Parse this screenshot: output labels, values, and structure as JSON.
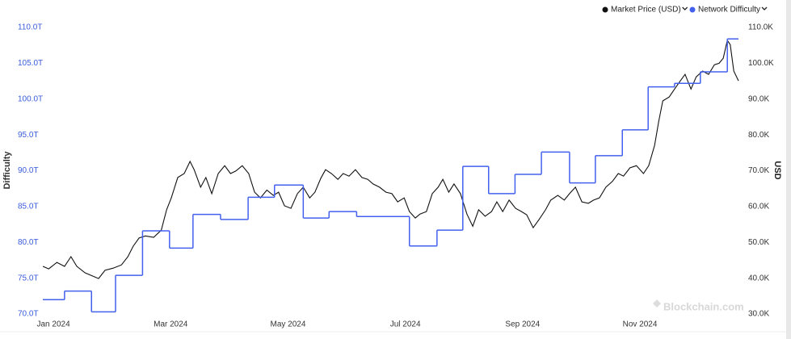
{
  "chart_data": {
    "type": "line",
    "y_label": "Difficulty",
    "y2_label": "USD",
    "watermark": "Blockchain.com",
    "xlim": [
      -0.18,
      11.68
    ],
    "xticks": [
      {
        "value": 0,
        "label": "Jan 2024"
      },
      {
        "value": 2,
        "label": "Mar 2024"
      },
      {
        "value": 4,
        "label": "May 2024"
      },
      {
        "value": 6,
        "label": "Jul 2024"
      },
      {
        "value": 8,
        "label": "Sep 2024"
      },
      {
        "value": 10,
        "label": "Nov 2024"
      }
    ],
    "ylim": [
      70,
      110
    ],
    "yticks": [
      {
        "value": 70,
        "label": "70.0T"
      },
      {
        "value": 75,
        "label": "75.0T"
      },
      {
        "value": 80,
        "label": "80.0T"
      },
      {
        "value": 85,
        "label": "85.0T"
      },
      {
        "value": 90,
        "label": "90.0T"
      },
      {
        "value": 95,
        "label": "95.0T"
      },
      {
        "value": 100,
        "label": "100.0T"
      },
      {
        "value": 105,
        "label": "105.0T"
      },
      {
        "value": 110,
        "label": "110.0T"
      }
    ],
    "y2lim": [
      30,
      110
    ],
    "y2ticks": [
      {
        "value": 30,
        "label": "30.0K"
      },
      {
        "value": 40,
        "label": "40.0K"
      },
      {
        "value": 50,
        "label": "50.0K"
      },
      {
        "value": 60,
        "label": "60.0K"
      },
      {
        "value": 70,
        "label": "70.0K"
      },
      {
        "value": 80,
        "label": "80.0K"
      },
      {
        "value": 90,
        "label": "90.0K"
      },
      {
        "value": 100,
        "label": "100.0K"
      },
      {
        "value": 110,
        "label": "110.0K"
      }
    ],
    "left_axis_color": "#3b5bdb",
    "series": [
      {
        "name": "Market Price (USD)",
        "color": "#111111",
        "axis": "y2",
        "x": [
          -0.18,
          -0.08,
          0.06,
          0.19,
          0.3,
          0.4,
          0.54,
          0.67,
          0.77,
          0.88,
          1.02,
          1.16,
          1.27,
          1.36,
          1.46,
          1.57,
          1.71,
          1.84,
          1.93,
          2.01,
          2.12,
          2.23,
          2.33,
          2.4,
          2.51,
          2.6,
          2.7,
          2.81,
          2.92,
          3.02,
          3.11,
          3.22,
          3.33,
          3.43,
          3.53,
          3.64,
          3.75,
          3.84,
          3.94,
          4.05,
          4.16,
          4.26,
          4.37,
          4.46,
          4.56,
          4.64,
          4.74,
          4.85,
          4.94,
          5.04,
          5.15,
          5.26,
          5.36,
          5.45,
          5.56,
          5.67,
          5.77,
          5.87,
          5.98,
          6.07,
          6.17,
          6.25,
          6.36,
          6.46,
          6.56,
          6.64,
          6.74,
          6.83,
          6.94,
          7.05,
          7.15,
          7.25,
          7.36,
          7.47,
          7.56,
          7.66,
          7.77,
          7.88,
          7.98,
          8.07,
          8.18,
          8.28,
          8.39,
          8.48,
          8.6,
          8.71,
          8.8,
          8.9,
          9.01,
          9.12,
          9.21,
          9.31,
          9.42,
          9.53,
          9.63,
          9.72,
          9.83,
          9.94,
          10.06,
          10.15,
          10.25,
          10.32,
          10.39,
          10.5,
          10.59,
          10.69,
          10.77,
          10.87,
          10.96,
          11.07,
          11.17,
          11.27,
          11.35,
          11.42,
          11.49,
          11.54,
          11.6,
          11.68
        ],
        "values": [
          43.3,
          42.6,
          44.4,
          43.3,
          46.0,
          43.3,
          41.5,
          40.6,
          39.9,
          42.2,
          42.8,
          43.7,
          46.0,
          48.9,
          51.2,
          51.8,
          51.4,
          53.4,
          59.1,
          62.4,
          68.1,
          69.2,
          72.6,
          70.3,
          65.4,
          68.1,
          63.6,
          69.2,
          71.4,
          69.2,
          69.9,
          71.4,
          69.2,
          64.0,
          62.4,
          64.6,
          63.1,
          64.0,
          60.2,
          59.5,
          63.6,
          65.4,
          62.4,
          64.0,
          67.9,
          70.3,
          69.2,
          67.6,
          69.2,
          68.5,
          70.3,
          68.1,
          67.6,
          66.3,
          65.4,
          64.0,
          63.6,
          61.3,
          62.4,
          58.6,
          56.8,
          57.9,
          58.6,
          63.6,
          65.4,
          67.6,
          64.0,
          66.3,
          63.6,
          57.9,
          54.5,
          59.1,
          57.3,
          58.6,
          61.3,
          58.6,
          61.8,
          59.5,
          58.6,
          57.7,
          54.1,
          56.4,
          59.1,
          61.8,
          63.1,
          61.8,
          63.6,
          65.4,
          61.3,
          60.9,
          61.8,
          62.4,
          65.4,
          67.0,
          69.2,
          68.5,
          70.8,
          71.4,
          69.2,
          71.4,
          77.1,
          83.8,
          89.5,
          90.6,
          92.8,
          95.1,
          96.9,
          92.8,
          96.2,
          97.8,
          96.9,
          99.6,
          100.0,
          101.4,
          106.4,
          105.2,
          97.8,
          95.1
        ]
      },
      {
        "name": "Network Difficulty",
        "color": "#4361ee",
        "axis": "y",
        "step": true,
        "x": [
          -0.18,
          0.19,
          0.65,
          1.06,
          1.52,
          1.98,
          2.38,
          2.85,
          3.32,
          3.77,
          4.26,
          4.7,
          5.17,
          6.07,
          6.54,
          6.98,
          7.42,
          7.87,
          8.32,
          8.8,
          9.24,
          9.7,
          10.14,
          10.59,
          11.03,
          11.49
        ],
        "values": [
          72.0,
          73.2,
          70.3,
          75.4,
          81.6,
          79.2,
          83.9,
          83.2,
          86.3,
          88.0,
          83.4,
          84.3,
          83.6,
          79.5,
          81.7,
          90.6,
          86.8,
          89.5,
          92.6,
          88.3,
          92.1,
          95.7,
          101.7,
          102.2,
          103.8,
          108.4
        ]
      }
    ]
  }
}
